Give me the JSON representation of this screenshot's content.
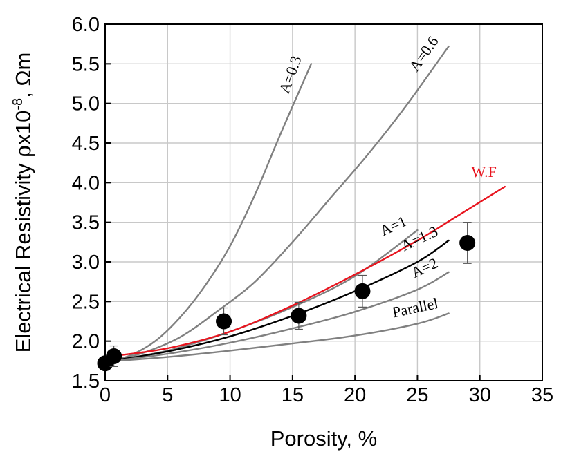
{
  "chart_data": {
    "type": "line",
    "title": "",
    "xlabel": "Porosity, %",
    "ylabel": {
      "prefix": "Electrical Resistivity ",
      "rho": "ρ",
      "times": "x10",
      "exponent": "-8",
      "unit": ", Ωm"
    },
    "xlim": [
      0,
      35
    ],
    "ylim": [
      1.5,
      6.0
    ],
    "x_ticks": [
      "0",
      "5",
      "10",
      "15",
      "20",
      "25",
      "30",
      "35"
    ],
    "y_ticks": [
      "1.5",
      "2.0",
      "2.5",
      "3.0",
      "3.5",
      "4.0",
      "4.5",
      "5.0",
      "5.5",
      "6.0"
    ],
    "grid": true,
    "series": [
      {
        "name": "A=0.3",
        "color": "#808080",
        "label_rotation": -70,
        "points": [
          [
            0,
            1.73
          ],
          [
            2,
            1.82
          ],
          [
            4,
            2.0
          ],
          [
            6,
            2.3
          ],
          [
            8,
            2.7
          ],
          [
            10,
            3.2
          ],
          [
            12,
            3.85
          ],
          [
            14,
            4.6
          ],
          [
            16.5,
            5.5
          ]
        ]
      },
      {
        "name": "A=0.6",
        "color": "#808080",
        "label_rotation": -55,
        "points": [
          [
            0,
            1.73
          ],
          [
            3,
            1.85
          ],
          [
            6,
            2.05
          ],
          [
            9,
            2.38
          ],
          [
            12,
            2.75
          ],
          [
            15,
            3.25
          ],
          [
            18,
            3.8
          ],
          [
            21,
            4.35
          ],
          [
            24,
            4.95
          ],
          [
            27.5,
            5.72
          ]
        ]
      },
      {
        "name": "A=1",
        "color": "#808080",
        "label_rotation": -25,
        "points": [
          [
            0,
            1.74
          ],
          [
            5,
            1.88
          ],
          [
            10,
            2.12
          ],
          [
            15,
            2.43
          ],
          [
            20,
            2.82
          ],
          [
            25,
            3.4
          ]
        ]
      },
      {
        "name": "A=1.3",
        "color": "#000000",
        "label_rotation": -25,
        "points": [
          [
            0,
            1.74
          ],
          [
            5,
            1.87
          ],
          [
            10,
            2.06
          ],
          [
            15,
            2.32
          ],
          [
            20,
            2.63
          ],
          [
            25,
            3.0
          ],
          [
            27.5,
            3.27
          ]
        ]
      },
      {
        "name": "A=2",
        "color": "#808080",
        "label_rotation": -25,
        "points": [
          [
            0,
            1.74
          ],
          [
            5,
            1.84
          ],
          [
            10,
            1.98
          ],
          [
            15,
            2.16
          ],
          [
            20,
            2.37
          ],
          [
            25,
            2.65
          ],
          [
            27.5,
            2.87
          ]
        ]
      },
      {
        "name": "Parallel",
        "color": "#808080",
        "label_rotation": -12,
        "points": [
          [
            0,
            1.74
          ],
          [
            5,
            1.8
          ],
          [
            10,
            1.88
          ],
          [
            15,
            1.97
          ],
          [
            20,
            2.07
          ],
          [
            25,
            2.22
          ],
          [
            27.5,
            2.35
          ]
        ]
      },
      {
        "name": "W.F",
        "color": "#e8141e",
        "label_rotation": 0,
        "points": [
          [
            0,
            1.8
          ],
          [
            5,
            1.91
          ],
          [
            10,
            2.12
          ],
          [
            15,
            2.45
          ],
          [
            20,
            2.84
          ],
          [
            25,
            3.27
          ],
          [
            28,
            3.56
          ],
          [
            32,
            3.95
          ]
        ]
      }
    ],
    "measured": {
      "marker": "filled-circle",
      "color": "#000000",
      "points": [
        {
          "x": 0,
          "y": 1.72,
          "err": 0.08
        },
        {
          "x": 0.7,
          "y": 1.81,
          "err": 0.13
        },
        {
          "x": 9.5,
          "y": 2.25,
          "err": 0.17
        },
        {
          "x": 15.5,
          "y": 2.32,
          "err": 0.17
        },
        {
          "x": 20.6,
          "y": 2.63,
          "err": 0.2
        },
        {
          "x": 29,
          "y": 3.24,
          "err": 0.26
        }
      ]
    }
  }
}
